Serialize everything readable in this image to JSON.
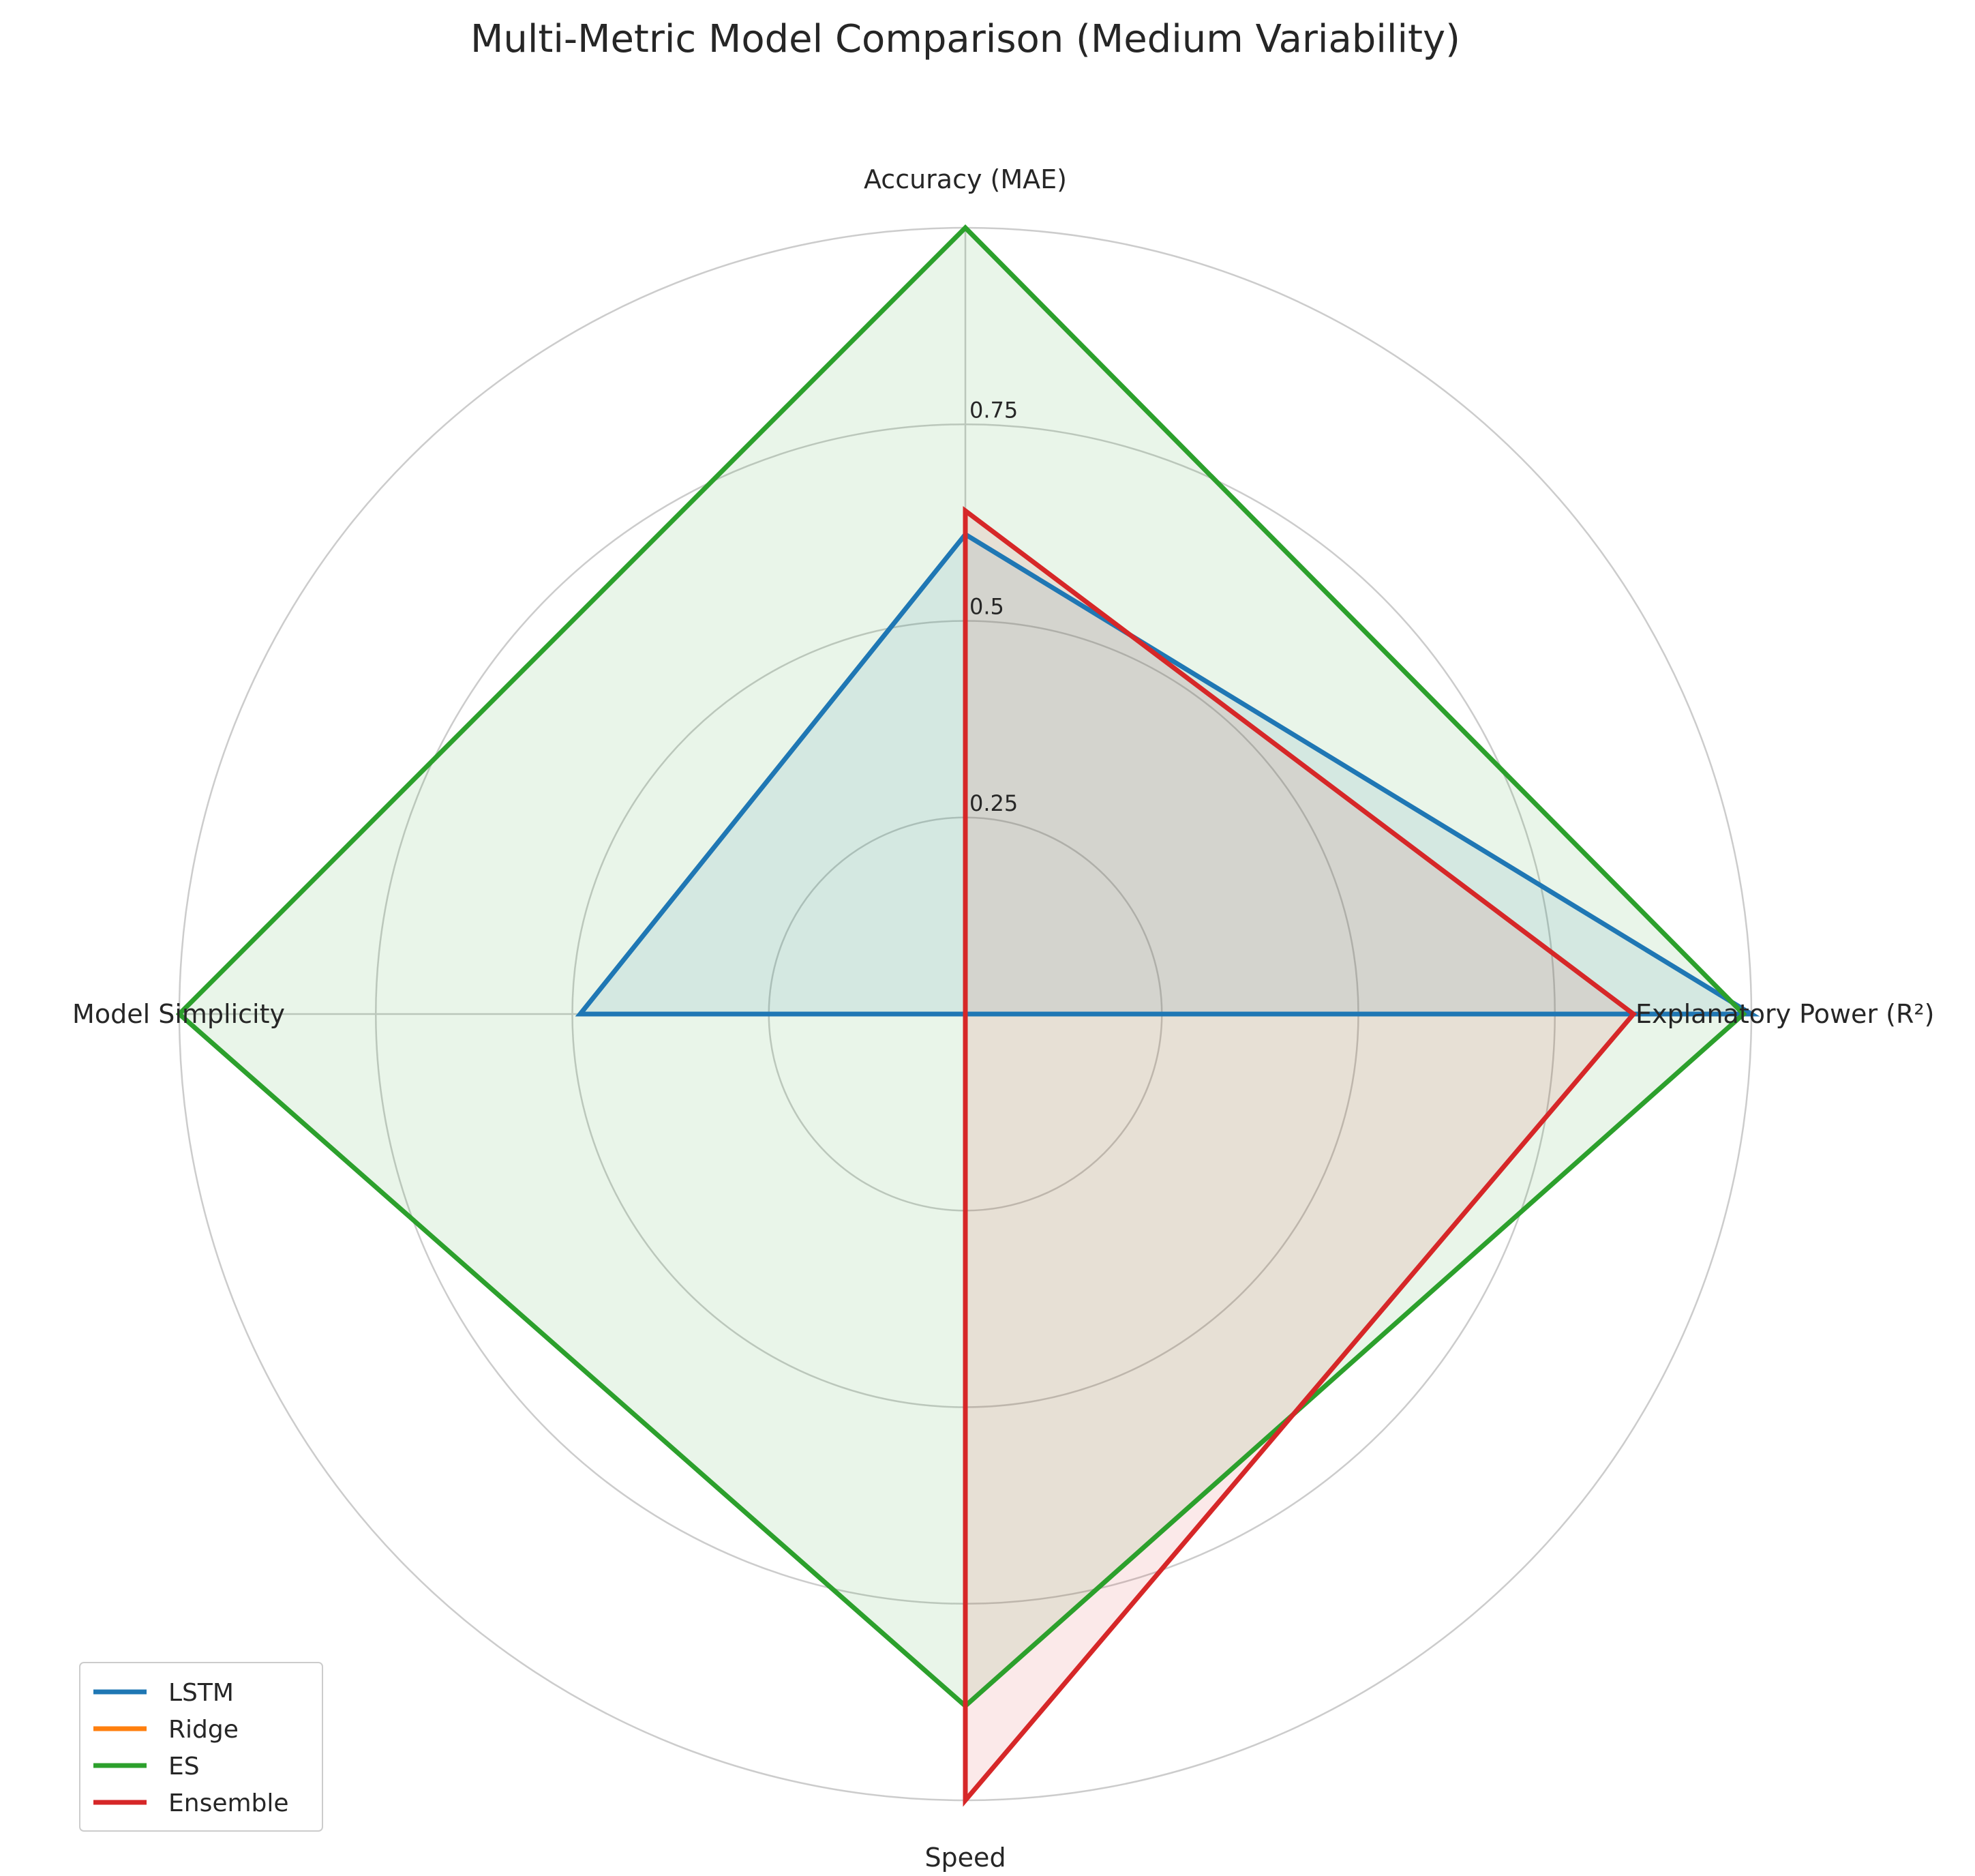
{
  "chart_data": {
    "type": "radar",
    "title": "Multi-Metric Model Comparison (Medium Variability)",
    "axes": [
      "Accuracy (MAE)",
      "Explanatory Power (R²)",
      "Speed",
      "Model Simplicity"
    ],
    "rlim": [
      0,
      1
    ],
    "rticks": [
      0.25,
      0.5,
      0.75
    ],
    "rtick_labels": [
      "0.25",
      "0.5",
      "0.75"
    ],
    "grid": true,
    "legend_position": "lower-left",
    "series": [
      {
        "name": "LSTM",
        "color": "#1f77b4",
        "values": [
          0.61,
          1.0,
          0.0,
          0.49
        ]
      },
      {
        "name": "Ridge",
        "color": "#ff7f0e",
        "values": [
          0.0,
          0.0,
          0.9,
          0.0
        ]
      },
      {
        "name": "ES",
        "color": "#2ca02c",
        "values": [
          1.0,
          0.99,
          0.88,
          1.0
        ]
      },
      {
        "name": "Ensemble",
        "color": "#d62728",
        "values": [
          0.64,
          0.85,
          1.0,
          0.0
        ]
      }
    ]
  }
}
